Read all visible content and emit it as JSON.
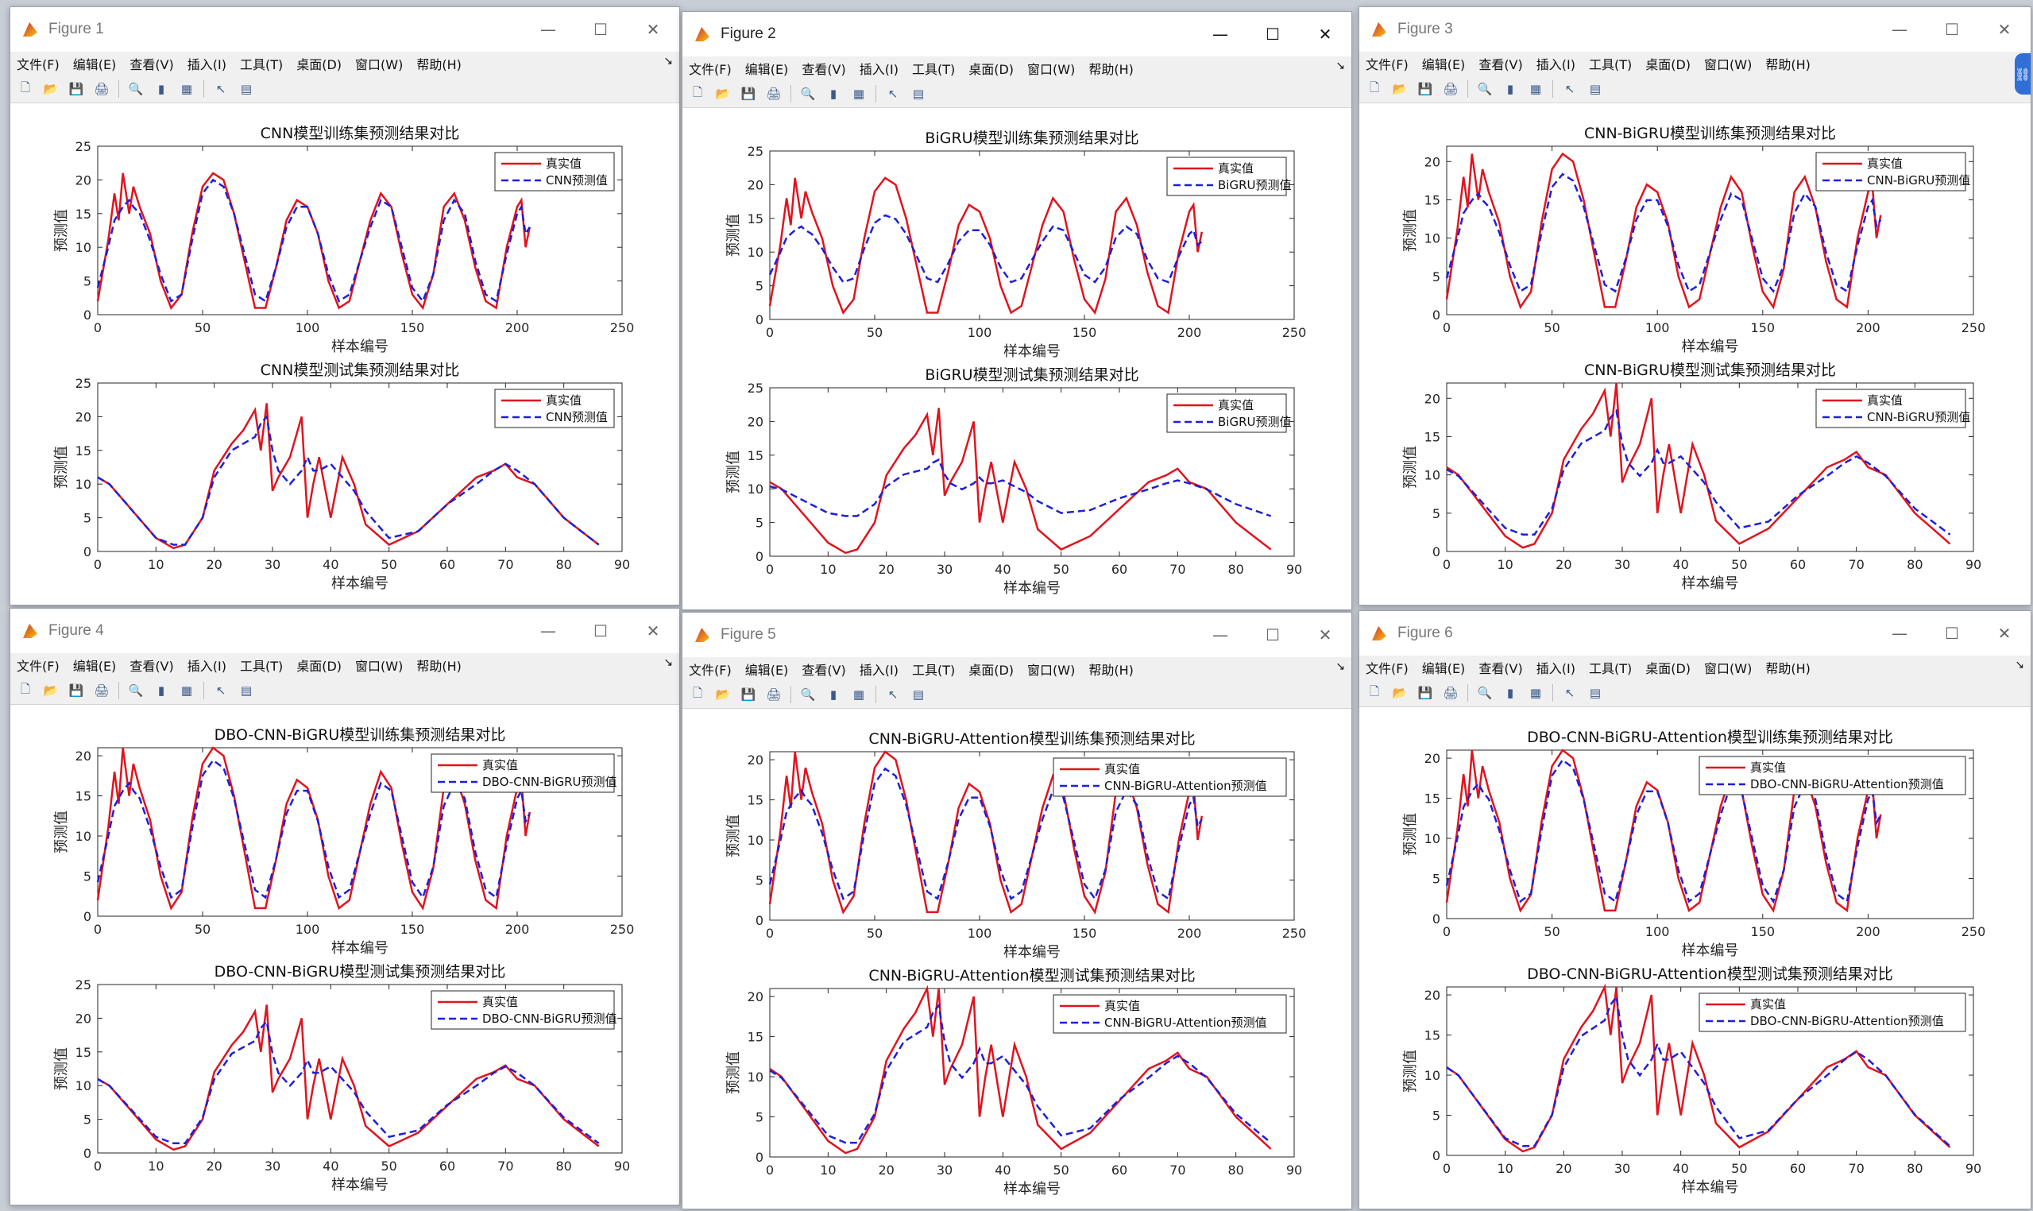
{
  "menus": [
    "文件(F)",
    "编辑(E)",
    "查看(V)",
    "插入(I)",
    "工具(T)",
    "桌面(D)",
    "窗口(W)",
    "帮助(H)"
  ],
  "icons": [
    "new-file-icon",
    "open-folder-icon",
    "save-icon",
    "print-icon",
    "print-preview-icon",
    "colorbar-icon",
    "legend-icon",
    "pointer-icon",
    "property-editor-icon"
  ],
  "window_controls": {
    "minimize": "—",
    "maximize": "☐",
    "close": "✕"
  },
  "colors": {
    "true_line": "#e0141e",
    "pred_line": "#1f1fd8",
    "axis": "#262626"
  },
  "windows": [
    {
      "title": "Figure 1",
      "active": false,
      "charts": [
        {
          "title": "CNN模型训练集预测结果对比",
          "xlabel": "样本编号",
          "ylabel": "预测值",
          "xlim": [
            0,
            250
          ],
          "xticks": [
            0,
            50,
            100,
            150,
            200,
            250
          ],
          "ylim": [
            0,
            25
          ],
          "yticks": [
            0,
            5,
            10,
            15,
            20,
            25
          ],
          "legend": [
            "真实值",
            "CNN预测值"
          ]
        },
        {
          "title": "CNN模型测试集预测结果对比",
          "xlabel": "样本编号",
          "ylabel": "预测值",
          "xlim": [
            0,
            90
          ],
          "xticks": [
            0,
            10,
            20,
            30,
            40,
            50,
            60,
            70,
            80,
            90
          ],
          "ylim": [
            0,
            25
          ],
          "yticks": [
            0,
            5,
            10,
            15,
            20,
            25
          ],
          "legend": [
            "真实值",
            "CNN预测值"
          ]
        }
      ]
    },
    {
      "title": "Figure 2",
      "active": true,
      "charts": [
        {
          "title": "BiGRU模型训练集预测结果对比",
          "xlabel": "样本编号",
          "ylabel": "预测值",
          "xlim": [
            0,
            250
          ],
          "xticks": [
            0,
            50,
            100,
            150,
            200,
            250
          ],
          "ylim": [
            0,
            25
          ],
          "yticks": [
            0,
            5,
            10,
            15,
            20,
            25
          ],
          "legend": [
            "真实值",
            "BiGRU预测值"
          ]
        },
        {
          "title": "BiGRU模型测试集预测结果对比",
          "xlabel": "样本编号",
          "ylabel": "预测值",
          "xlim": [
            0,
            90
          ],
          "xticks": [
            0,
            10,
            20,
            30,
            40,
            50,
            60,
            70,
            80,
            90
          ],
          "ylim": [
            0,
            25
          ],
          "yticks": [
            0,
            5,
            10,
            15,
            20,
            25
          ],
          "legend": [
            "真实值",
            "BiGRU预测值"
          ]
        }
      ]
    },
    {
      "title": "Figure 3",
      "active": false,
      "charts": [
        {
          "title": "CNN-BiGRU模型训练集预测结果对比",
          "xlabel": "样本编号",
          "ylabel": "预测值",
          "xlim": [
            0,
            250
          ],
          "xticks": [
            0,
            50,
            100,
            150,
            200,
            250
          ],
          "ylim": [
            0,
            22
          ],
          "yticks": [
            0,
            5,
            10,
            15,
            20
          ],
          "legend": [
            "真实值",
            "CNN-BiGRU预测值"
          ]
        },
        {
          "title": "CNN-BiGRU模型测试集预测结果对比",
          "xlabel": "样本编号",
          "ylabel": "预测值",
          "xlim": [
            0,
            90
          ],
          "xticks": [
            0,
            10,
            20,
            30,
            40,
            50,
            60,
            70,
            80,
            90
          ],
          "ylim": [
            0,
            22
          ],
          "yticks": [
            0,
            5,
            10,
            15,
            20
          ],
          "legend": [
            "真实值",
            "CNN-BiGRU预测值"
          ]
        }
      ]
    },
    {
      "title": "Figure 4",
      "active": false,
      "charts": [
        {
          "title": "DBO-CNN-BiGRU模型训练集预测结果对比",
          "xlabel": "样本编号",
          "ylabel": "预测值",
          "xlim": [
            0,
            250
          ],
          "xticks": [
            0,
            50,
            100,
            150,
            200,
            250
          ],
          "ylim": [
            0,
            21
          ],
          "yticks": [
            0,
            5,
            10,
            15,
            20
          ],
          "legend": [
            "真实值",
            "DBO-CNN-BiGRU预测值"
          ]
        },
        {
          "title": "DBO-CNN-BiGRU模型测试集预测结果对比",
          "xlabel": "样本编号",
          "ylabel": "预测值",
          "xlim": [
            0,
            90
          ],
          "xticks": [
            0,
            10,
            20,
            30,
            40,
            50,
            60,
            70,
            80,
            90
          ],
          "ylim": [
            0,
            25
          ],
          "yticks": [
            0,
            5,
            10,
            15,
            20,
            25
          ],
          "legend": [
            "真实值",
            "DBO-CNN-BiGRU预测值"
          ]
        }
      ]
    },
    {
      "title": "Figure 5",
      "active": false,
      "charts": [
        {
          "title": "CNN-BiGRU-Attention模型训练集预测结果对比",
          "xlabel": "样本编号",
          "ylabel": "预测值",
          "xlim": [
            0,
            250
          ],
          "xticks": [
            0,
            50,
            100,
            150,
            200,
            250
          ],
          "ylim": [
            0,
            21
          ],
          "yticks": [
            0,
            5,
            10,
            15,
            20
          ],
          "legend": [
            "真实值",
            "CNN-BiGRU-Attention预测值"
          ]
        },
        {
          "title": "CNN-BiGRU-Attention模型测试集预测结果对比",
          "xlabel": "样本编号",
          "ylabel": "预测值",
          "xlim": [
            0,
            90
          ],
          "xticks": [
            0,
            10,
            20,
            30,
            40,
            50,
            60,
            70,
            80,
            90
          ],
          "ylim": [
            0,
            21
          ],
          "yticks": [
            0,
            5,
            10,
            15,
            20
          ],
          "legend": [
            "真实值",
            "CNN-BiGRU-Attention预测值"
          ]
        }
      ]
    },
    {
      "title": "Figure 6",
      "active": false,
      "charts": [
        {
          "title": "DBO-CNN-BiGRU-Attention模型训练集预测结果对比",
          "xlabel": "样本编号",
          "ylabel": "预测值",
          "xlim": [
            0,
            250
          ],
          "xticks": [
            0,
            50,
            100,
            150,
            200,
            250
          ],
          "ylim": [
            0,
            21
          ],
          "yticks": [
            0,
            5,
            10,
            15,
            20
          ],
          "legend": [
            "真实值",
            "DBO-CNN-BiGRU-Attention预测值"
          ]
        },
        {
          "title": "DBO-CNN-BiGRU-Attention模型测试集预测结果对比",
          "xlabel": "样本编号",
          "ylabel": "预测值",
          "xlim": [
            0,
            90
          ],
          "xticks": [
            0,
            10,
            20,
            30,
            40,
            50,
            60,
            70,
            80,
            90
          ],
          "ylim": [
            0,
            21
          ],
          "yticks": [
            0,
            5,
            10,
            15,
            20
          ],
          "legend": [
            "真实值",
            "DBO-CNN-BiGRU-Attention预测值"
          ]
        }
      ]
    }
  ],
  "chart_data": [
    {
      "type": "line",
      "id": "train",
      "note_x": [
        0,
        5,
        8,
        10,
        12,
        15,
        17,
        20,
        25,
        30,
        35,
        40,
        45,
        50,
        55,
        60,
        65,
        70,
        75,
        80,
        85,
        90,
        95,
        100,
        105,
        110,
        115,
        120,
        125,
        130,
        135,
        140,
        145,
        150,
        155,
        160,
        165,
        170,
        175,
        180,
        185,
        190,
        195,
        200,
        202,
        204,
        206
      ],
      "series": [
        {
          "name": "真实值",
          "x": [
            0,
            5,
            8,
            10,
            12,
            15,
            17,
            20,
            25,
            30,
            35,
            40,
            45,
            50,
            55,
            60,
            65,
            70,
            75,
            80,
            85,
            90,
            95,
            100,
            105,
            110,
            115,
            120,
            125,
            130,
            135,
            140,
            145,
            150,
            155,
            160,
            165,
            170,
            175,
            180,
            185,
            190,
            195,
            200,
            202,
            204,
            206
          ],
          "y": [
            2,
            11,
            18,
            14,
            21,
            15,
            19,
            16,
            12,
            5,
            1,
            3,
            12,
            19,
            21,
            20,
            15,
            8,
            1,
            1,
            7,
            14,
            17,
            16,
            12,
            5,
            1,
            2,
            8,
            14,
            18,
            16,
            9,
            3,
            1,
            6,
            16,
            18,
            14,
            7,
            2,
            1,
            10,
            16,
            17,
            10,
            13
          ]
        },
        {
          "name": "预测值",
          "x": [
            0,
            5,
            8,
            10,
            12,
            15,
            17,
            20,
            25,
            30,
            35,
            40,
            45,
            50,
            55,
            60,
            65,
            70,
            75,
            80,
            85,
            90,
            95,
            100,
            105,
            110,
            115,
            120,
            125,
            130,
            135,
            140,
            145,
            150,
            155,
            160,
            165,
            170,
            175,
            180,
            185,
            190,
            195,
            200,
            202,
            204,
            206
          ],
          "y": [
            4,
            10,
            14,
            15,
            16,
            17,
            16,
            15,
            11,
            6,
            2,
            3,
            11,
            18,
            20,
            19,
            15,
            9,
            3,
            2,
            7,
            13,
            16,
            16,
            12,
            6,
            2,
            3,
            8,
            13,
            17,
            16,
            10,
            4,
            2,
            6,
            14,
            17,
            15,
            8,
            3,
            2,
            9,
            15,
            16,
            12,
            13
          ]
        }
      ]
    },
    {
      "type": "line",
      "id": "test",
      "series": [
        {
          "name": "真实值",
          "x": [
            0,
            2,
            5,
            8,
            10,
            13,
            15,
            18,
            20,
            23,
            25,
            27,
            28,
            29,
            30,
            31,
            33,
            35,
            36,
            37,
            38,
            40,
            42,
            44,
            46,
            50,
            55,
            60,
            65,
            68,
            70,
            72,
            75,
            78,
            80,
            83,
            86
          ],
          "y": [
            11,
            10,
            7,
            4,
            2,
            0.5,
            1,
            5,
            12,
            16,
            18,
            21,
            15,
            22,
            9,
            11,
            14,
            20,
            5,
            10,
            14,
            5,
            14,
            10,
            4,
            1,
            3,
            7,
            11,
            12,
            13,
            11,
            10,
            7,
            5,
            3,
            1
          ]
        },
        {
          "name": "预测值",
          "x": [
            0,
            2,
            5,
            8,
            10,
            13,
            15,
            18,
            20,
            23,
            25,
            27,
            28,
            29,
            30,
            31,
            33,
            35,
            36,
            37,
            38,
            40,
            42,
            44,
            46,
            50,
            55,
            60,
            65,
            68,
            70,
            72,
            75,
            78,
            80,
            83,
            86
          ],
          "y": [
            11,
            10,
            7,
            4,
            2,
            1,
            1,
            5,
            11,
            15,
            16,
            17,
            19,
            20,
            15,
            12,
            10,
            12,
            14,
            12,
            12,
            13,
            11,
            9,
            6,
            2,
            3,
            7,
            10,
            12,
            13,
            12,
            10,
            7,
            5,
            3,
            1
          ]
        }
      ]
    }
  ]
}
